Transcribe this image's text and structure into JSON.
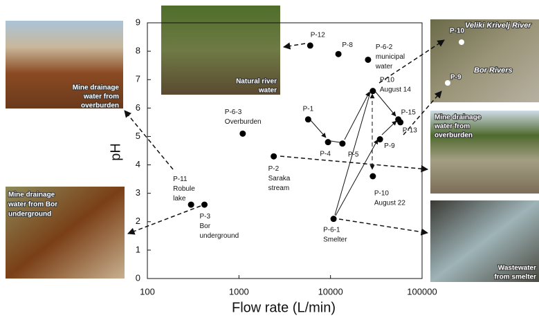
{
  "chart_data": {
    "type": "scatter",
    "x_label": "Flow rate (L/min)",
    "y_label": "pH",
    "xscale": "log",
    "xlim": [
      100,
      100000
    ],
    "ylim": [
      0,
      9
    ],
    "xticks": [
      100,
      1000,
      10000,
      100000
    ],
    "yticks": [
      0,
      1,
      2,
      3,
      4,
      5,
      6,
      7,
      8,
      9
    ],
    "color": "#000000",
    "points": [
      {
        "label": [
          "P-12"
        ],
        "x": 6000,
        "y": 8.2
      },
      {
        "label": [
          "P-8"
        ],
        "x": 12200,
        "y": 7.9
      },
      {
        "label": [
          "P-6-2",
          "municipal",
          "water"
        ],
        "x": 25700,
        "y": 7.7
      },
      {
        "label": [
          "P-10",
          "August 14"
        ],
        "x": 29000,
        "y": 6.6
      },
      {
        "label": [
          "P-1"
        ],
        "x": 5700,
        "y": 5.6
      },
      {
        "label": [
          "P-4"
        ],
        "x": 9400,
        "y": 4.8
      },
      {
        "label": [
          "P-5"
        ],
        "x": 13500,
        "y": 4.75
      },
      {
        "label": [
          "P-6-3",
          "Overburden"
        ],
        "x": 1100,
        "y": 5.1
      },
      {
        "label": [
          "P-15"
        ],
        "x": 55000,
        "y": 5.6
      },
      {
        "label": [
          "P-13"
        ],
        "x": 58000,
        "y": 5.5
      },
      {
        "label": [
          "P-9"
        ],
        "x": 34700,
        "y": 4.9
      },
      {
        "label": [
          "P-2",
          "Saraka",
          "stream"
        ],
        "x": 2400,
        "y": 4.3
      },
      {
        "label": [
          "P-10",
          "August 22"
        ],
        "x": 29000,
        "y": 3.6
      },
      {
        "label": [
          "P-11",
          "Robule",
          "lake"
        ],
        "x": 300,
        "y": 2.6
      },
      {
        "label": [
          "P-3",
          "Bor",
          "underground"
        ],
        "x": 420,
        "y": 2.6
      },
      {
        "label": [
          "P-6-1",
          "Smelter"
        ],
        "x": 10800,
        "y": 2.1
      }
    ]
  },
  "photos": [
    {
      "texts": [
        "Mine drainage",
        "water from",
        "overburden"
      ]
    },
    {
      "texts": [
        "Mine drainage",
        "water from Bor",
        "underground"
      ]
    },
    {
      "texts": [
        "Natural river",
        "water"
      ]
    },
    {
      "texts": [
        "Veliki Krivelj River",
        "P-10",
        "Bor Rivers",
        "P-9"
      ]
    },
    {
      "texts": [
        "Mine drainage",
        "water from",
        "overburden"
      ]
    },
    {
      "texts": [
        "Wastewater",
        "from smelter"
      ]
    }
  ]
}
